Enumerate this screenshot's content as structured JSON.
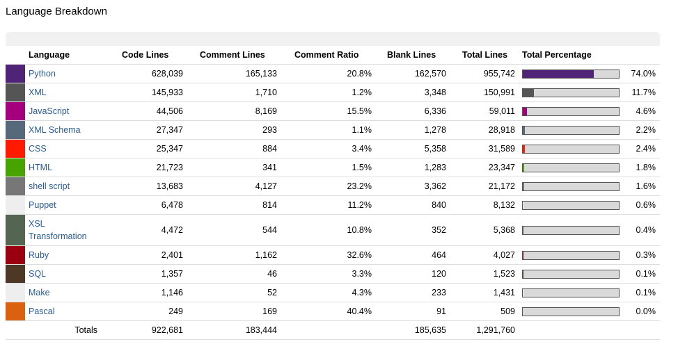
{
  "page": {
    "title": "Language Breakdown"
  },
  "table": {
    "headers": {
      "language": "Language",
      "code": "Code Lines",
      "comment": "Comment Lines",
      "ratio": "Comment Ratio",
      "blank": "Blank Lines",
      "total": "Total Lines",
      "percentage": "Total Percentage"
    },
    "rows": [
      {
        "name": "Python",
        "color": "#4f2375",
        "code": "628,039",
        "comment": "165,133",
        "ratio": "20.8%",
        "blank": "162,570",
        "total": "955,742",
        "pct": "74.0%",
        "fraction": 0.74
      },
      {
        "name": "XML",
        "color": "#555555",
        "code": "145,933",
        "comment": "1,710",
        "ratio": "1.2%",
        "blank": "3,348",
        "total": "150,991",
        "pct": "11.7%",
        "fraction": 0.117
      },
      {
        "name": "JavaScript",
        "color": "#a4007e",
        "code": "44,506",
        "comment": "8,169",
        "ratio": "15.5%",
        "blank": "6,336",
        "total": "59,011",
        "pct": "4.6%",
        "fraction": 0.046
      },
      {
        "name": "XML Schema",
        "color": "#56697a",
        "code": "27,347",
        "comment": "293",
        "ratio": "1.1%",
        "blank": "1,278",
        "total": "28,918",
        "pct": "2.2%",
        "fraction": 0.022
      },
      {
        "name": "CSS",
        "color": "#ff1a00",
        "code": "25,347",
        "comment": "884",
        "ratio": "3.4%",
        "blank": "5,358",
        "total": "31,589",
        "pct": "2.4%",
        "fraction": 0.024
      },
      {
        "name": "HTML",
        "color": "#47a400",
        "code": "21,723",
        "comment": "341",
        "ratio": "1.5%",
        "blank": "1,283",
        "total": "23,347",
        "pct": "1.8%",
        "fraction": 0.018
      },
      {
        "name": "shell script",
        "color": "#777777",
        "code": "13,683",
        "comment": "4,127",
        "ratio": "23.2%",
        "blank": "3,362",
        "total": "21,172",
        "pct": "1.6%",
        "fraction": 0.016
      },
      {
        "name": "Puppet",
        "color": "#eeeeee",
        "code": "6,478",
        "comment": "814",
        "ratio": "11.2%",
        "blank": "840",
        "total": "8,132",
        "pct": "0.6%",
        "fraction": 0.006
      },
      {
        "name": "XSL Transformation",
        "line1": "XSL",
        "line2": "Transformation",
        "color": "#546652",
        "code": "4,472",
        "comment": "544",
        "ratio": "10.8%",
        "blank": "352",
        "total": "5,368",
        "pct": "0.4%",
        "fraction": 0.004
      },
      {
        "name": "Ruby",
        "color": "#9b0011",
        "code": "2,401",
        "comment": "1,162",
        "ratio": "32.6%",
        "blank": "464",
        "total": "4,027",
        "pct": "0.3%",
        "fraction": 0.003
      },
      {
        "name": "SQL",
        "color": "#4c3824",
        "code": "1,357",
        "comment": "46",
        "ratio": "3.3%",
        "blank": "120",
        "total": "1,523",
        "pct": "0.1%",
        "fraction": 0.001
      },
      {
        "name": "Make",
        "color": "#eeeeee",
        "code": "1,146",
        "comment": "52",
        "ratio": "4.3%",
        "blank": "233",
        "total": "1,431",
        "pct": "0.1%",
        "fraction": 0.001
      },
      {
        "name": "Pascal",
        "color": "#da6110",
        "code": "249",
        "comment": "169",
        "ratio": "40.4%",
        "blank": "91",
        "total": "509",
        "pct": "0.0%",
        "fraction": 0.0
      }
    ],
    "totals": {
      "label": "Totals",
      "code": "922,681",
      "comment": "183,444",
      "blank": "185,635",
      "total": "1,291,760"
    }
  }
}
